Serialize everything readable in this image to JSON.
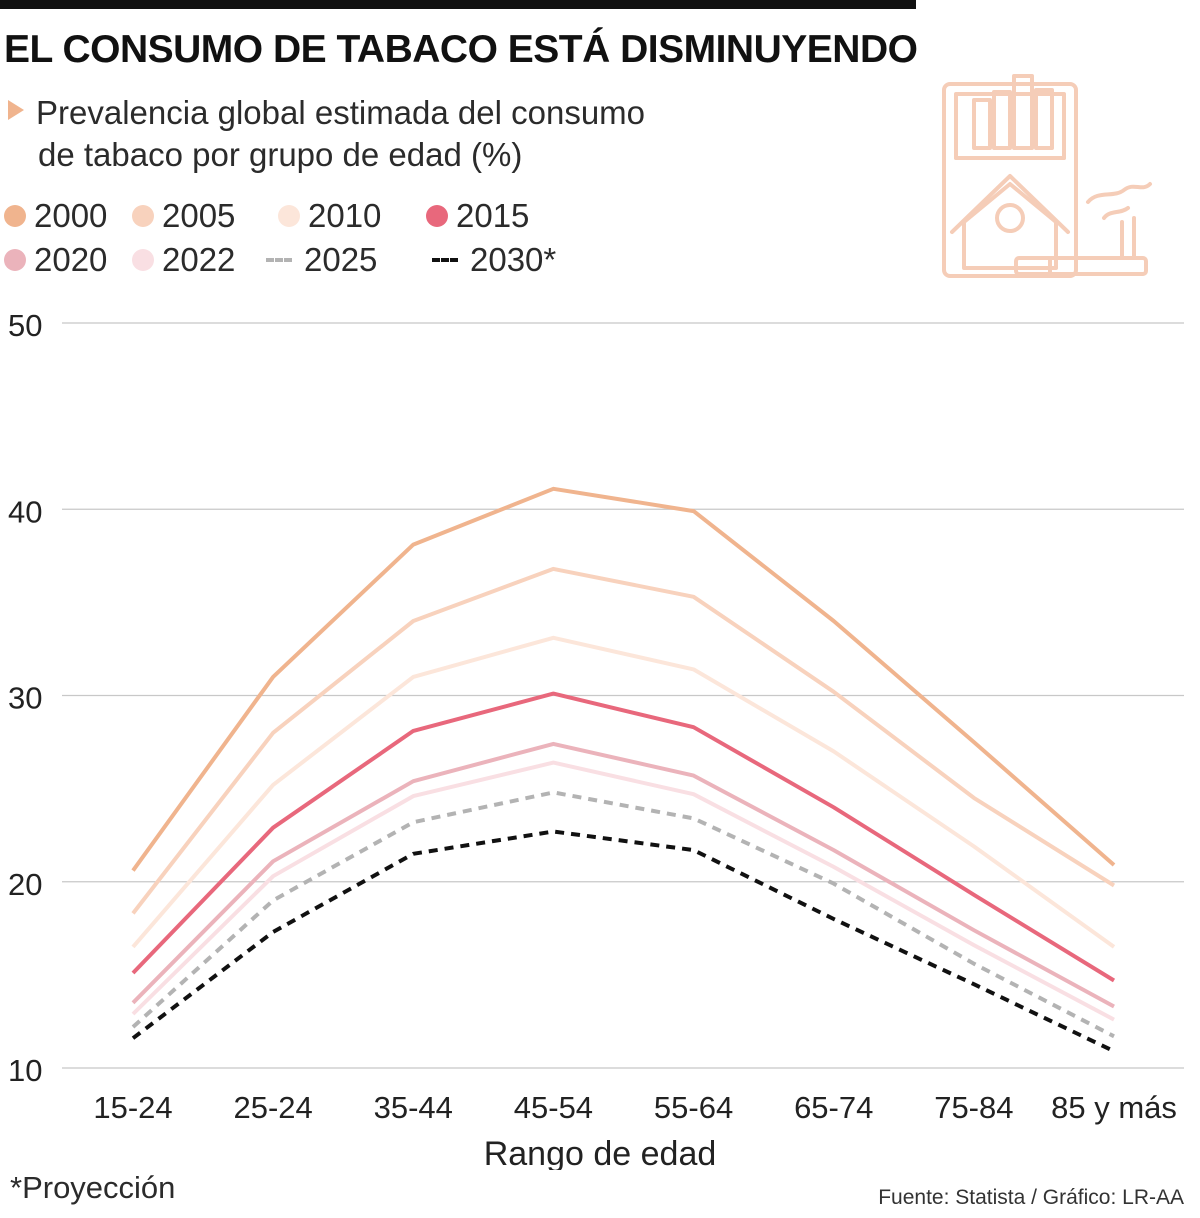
{
  "header": {
    "title": "EL CONSUMO DE TABACO ESTÁ DISMINUYENDO",
    "subtitle_line1": "Prevalencia global estimada del consumo",
    "subtitle_line2": "de tabaco por grupo de edad (%)"
  },
  "legend": [
    {
      "label": "2000",
      "color": "#f0b48e",
      "style": "dot"
    },
    {
      "label": "2005",
      "color": "#f8d2bd",
      "style": "dot"
    },
    {
      "label": "2010",
      "color": "#fce6da",
      "style": "dot"
    },
    {
      "label": "2015",
      "color": "#e8687c",
      "style": "dot"
    },
    {
      "label": "2020",
      "color": "#ebb3bb",
      "style": "dot"
    },
    {
      "label": "2022",
      "color": "#f9dfe3",
      "style": "dot"
    },
    {
      "label": "2025",
      "color": "#b3b3b3",
      "style": "dash"
    },
    {
      "label": "2030*",
      "color": "#111111",
      "style": "dash"
    }
  ],
  "icon": {
    "name": "cigarette-pack-icon",
    "color": "#f5cdb8"
  },
  "chart_data": {
    "type": "line",
    "title": "EL CONSUMO DE TABACO ESTÁ DISMINUYENDO",
    "xlabel": "Rango de edad",
    "ylabel": "",
    "categories": [
      "15-24",
      "25-24",
      "35-44",
      "45-54",
      "55-64",
      "65-74",
      "75-84",
      "85 y más"
    ],
    "ylim": [
      10,
      50
    ],
    "yticks": [
      10,
      20,
      30,
      40,
      50
    ],
    "grid": true,
    "series": [
      {
        "name": "2000",
        "color": "#f0b48e",
        "dash": false,
        "values": [
          20.6,
          31.0,
          38.1,
          41.1,
          39.9,
          34.0,
          27.5,
          20.9
        ]
      },
      {
        "name": "2005",
        "color": "#f8d2bd",
        "dash": false,
        "values": [
          18.3,
          28.0,
          34.0,
          36.8,
          35.3,
          30.2,
          24.5,
          19.8
        ]
      },
      {
        "name": "2010",
        "color": "#fce6da",
        "dash": false,
        "values": [
          16.5,
          25.2,
          31.0,
          33.1,
          31.4,
          27.0,
          21.9,
          16.5
        ]
      },
      {
        "name": "2015",
        "color": "#e8687c",
        "dash": false,
        "values": [
          15.1,
          22.9,
          28.1,
          30.1,
          28.3,
          24.0,
          19.3,
          14.7
        ]
      },
      {
        "name": "2020",
        "color": "#ebb3bb",
        "dash": false,
        "values": [
          13.5,
          21.1,
          25.4,
          27.4,
          25.7,
          21.7,
          17.4,
          13.3
        ]
      },
      {
        "name": "2022",
        "color": "#f9dfe3",
        "dash": false,
        "values": [
          12.9,
          20.3,
          24.6,
          26.4,
          24.7,
          20.8,
          16.6,
          12.6
        ]
      },
      {
        "name": "2025",
        "color": "#b3b3b3",
        "dash": true,
        "values": [
          12.2,
          19.0,
          23.2,
          24.8,
          23.4,
          19.9,
          15.6,
          11.7
        ]
      },
      {
        "name": "2030*",
        "color": "#111111",
        "dash": true,
        "values": [
          11.6,
          17.3,
          21.5,
          22.7,
          21.7,
          18.0,
          14.5,
          10.9
        ]
      }
    ]
  },
  "footer": {
    "footnote": "*Proyección",
    "source": "Fuente: Statista / Gráfico: LR-AA"
  }
}
